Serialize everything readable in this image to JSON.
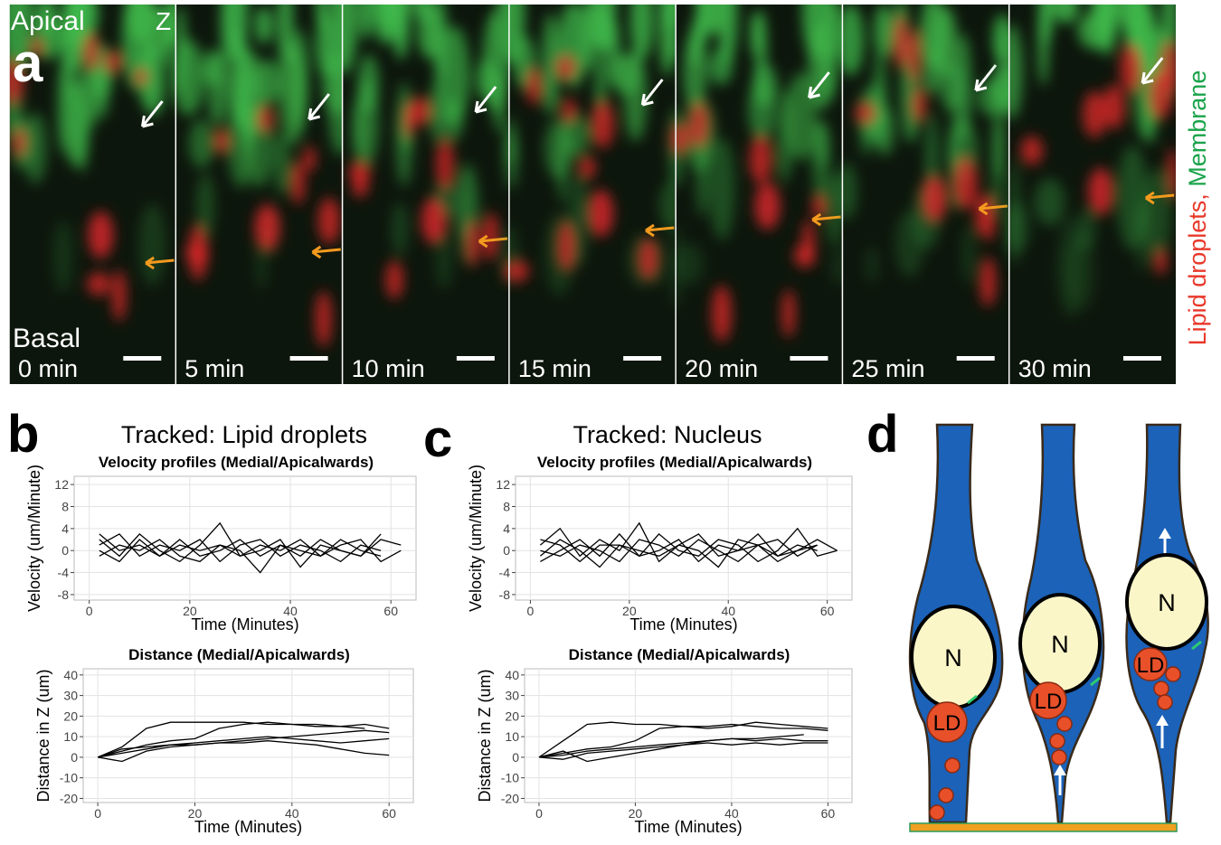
{
  "panel_a": {
    "letter": "a",
    "apical": "Apical",
    "axis": "Z",
    "basal": "Basal",
    "frames": [
      "0 min",
      "5 min",
      "10 min",
      "15 min",
      "20 min",
      "25 min",
      "30 min"
    ],
    "channel_red": "Lipid droplets,",
    "channel_green": "Membrane"
  },
  "panel_b": {
    "letter": "b",
    "heading": "Tracked: Lipid droplets"
  },
  "panel_c": {
    "letter": "c",
    "heading": "Tracked: Nucleus"
  },
  "panel_d": {
    "letter": "d",
    "nucleus": "N",
    "droplet": "LD"
  },
  "chart_data": [
    {
      "type": "line",
      "title": "Velocity profiles (Medial/Apicalwards)",
      "x_label": "Time (Minutes)",
      "y_label": "Velocity (um/Minute)",
      "color": "#000000",
      "grid": true,
      "xlim": [
        -3,
        65
      ],
      "xticks": [
        0,
        20,
        40,
        60
      ],
      "ylim": [
        -9,
        13.5
      ],
      "yticks": [
        -8,
        -4,
        0,
        4,
        8,
        12
      ],
      "x": [
        2,
        6,
        10,
        14,
        18,
        22,
        26,
        30,
        34,
        38,
        42,
        46,
        50,
        54,
        58,
        62
      ],
      "series": [
        {
          "values": [
            2,
            -1,
            3,
            0,
            -2,
            1,
            5,
            -1,
            0,
            2,
            -3,
            1,
            0,
            -1,
            2,
            1
          ]
        },
        {
          "values": [
            -1,
            1,
            0,
            2,
            -1,
            -2,
            1,
            0,
            -4,
            1,
            0,
            -1,
            2,
            0,
            -1,
            null
          ]
        },
        {
          "values": [
            1,
            3,
            -1,
            1,
            0,
            2,
            -2,
            1,
            2,
            -1,
            1,
            0,
            -2,
            1,
            0,
            null
          ]
        },
        {
          "values": [
            0,
            -2,
            2,
            -1,
            1,
            0,
            1,
            -1,
            1,
            0,
            2,
            -1,
            1,
            2,
            -2,
            0
          ]
        },
        {
          "values": [
            3,
            0,
            1,
            -1,
            2,
            -1,
            0,
            2,
            -1,
            1,
            -1,
            2,
            0,
            -1,
            3,
            null
          ]
        }
      ]
    },
    {
      "type": "line",
      "title": "Distance (Medial/Apicalwards)",
      "x_label": "Time (Minutes)",
      "y_label": "Distance in Z (um)",
      "color": "#000000",
      "grid": true,
      "xlim": [
        -3,
        65
      ],
      "xticks": [
        0,
        20,
        40,
        60
      ],
      "ylim": [
        -22,
        43
      ],
      "yticks": [
        -20,
        -10,
        0,
        10,
        20,
        30,
        40
      ],
      "x": [
        0,
        5,
        10,
        15,
        20,
        25,
        30,
        35,
        40,
        45,
        50,
        55,
        60
      ],
      "series": [
        {
          "values": [
            0,
            5,
            14,
            17,
            17,
            17,
            17,
            16,
            16,
            16,
            15,
            14,
            null
          ]
        },
        {
          "values": [
            0,
            3,
            6,
            8,
            9,
            14,
            16,
            17,
            16,
            15,
            15,
            16,
            14
          ]
        },
        {
          "values": [
            0,
            2,
            4,
            6,
            7,
            8,
            9,
            10,
            9,
            8,
            7,
            8,
            9
          ]
        },
        {
          "values": [
            0,
            -2,
            3,
            5,
            6,
            7,
            8,
            9,
            10,
            11,
            12,
            13,
            12
          ]
        },
        {
          "values": [
            0,
            4,
            5,
            6,
            6,
            7,
            7,
            8,
            7,
            6,
            4,
            2,
            1
          ]
        }
      ]
    },
    {
      "type": "line",
      "title": "Velocity profiles (Medial/Apicalwards)",
      "x_label": "Time (Minutes)",
      "y_label": "Velocity (um/Minute)",
      "color": "#000000",
      "grid": true,
      "xlim": [
        -3,
        65
      ],
      "xticks": [
        0,
        20,
        40,
        60
      ],
      "ylim": [
        -9,
        13.5
      ],
      "yticks": [
        -8,
        -4,
        0,
        4,
        8,
        12
      ],
      "x": [
        2,
        6,
        10,
        14,
        18,
        22,
        26,
        30,
        34,
        38,
        42,
        46,
        50,
        54,
        58,
        62
      ],
      "series": [
        {
          "values": [
            1,
            4,
            -1,
            2,
            0,
            5,
            -2,
            1,
            0,
            -3,
            2,
            1,
            -1,
            0,
            2,
            0
          ]
        },
        {
          "values": [
            -2,
            0,
            2,
            -1,
            3,
            -1,
            0,
            2,
            -2,
            1,
            0,
            3,
            -1,
            1,
            0,
            null
          ]
        },
        {
          "values": [
            0,
            -1,
            1,
            0,
            -2,
            2,
            1,
            -1,
            2,
            0,
            -2,
            1,
            2,
            -1,
            1,
            null
          ]
        },
        {
          "values": [
            2,
            1,
            -2,
            1,
            1,
            -1,
            3,
            0,
            -1,
            2,
            1,
            -2,
            0,
            4,
            -1,
            0
          ]
        },
        {
          "values": [
            -1,
            2,
            0,
            -3,
            1,
            0,
            -1,
            1,
            3,
            -1,
            0,
            1,
            -2,
            0,
            1,
            null
          ]
        }
      ]
    },
    {
      "type": "line",
      "title": "Distance (Medial/Apicalwards)",
      "x_label": "Time (Minutes)",
      "y_label": "Distance in Z (um)",
      "color": "#000000",
      "grid": true,
      "xlim": [
        -3,
        65
      ],
      "xticks": [
        0,
        20,
        40,
        60
      ],
      "ylim": [
        -22,
        43
      ],
      "yticks": [
        -20,
        -10,
        0,
        10,
        20,
        30,
        40
      ],
      "x": [
        0,
        5,
        10,
        15,
        20,
        25,
        30,
        35,
        40,
        45,
        50,
        55,
        60
      ],
      "series": [
        {
          "values": [
            0,
            8,
            16,
            17,
            16,
            16,
            15,
            15,
            16,
            15,
            14,
            14,
            13
          ]
        },
        {
          "values": [
            0,
            2,
            4,
            5,
            8,
            14,
            15,
            14,
            15,
            17,
            16,
            15,
            14
          ]
        },
        {
          "values": [
            0,
            1,
            3,
            4,
            5,
            6,
            7,
            8,
            9,
            8,
            9,
            8,
            8
          ]
        },
        {
          "values": [
            0,
            -1,
            2,
            3,
            4,
            5,
            6,
            8,
            9,
            9,
            10,
            11,
            null
          ]
        },
        {
          "values": [
            0,
            3,
            -2,
            0,
            2,
            4,
            6,
            7,
            6,
            7,
            6,
            7,
            7
          ]
        }
      ]
    }
  ]
}
